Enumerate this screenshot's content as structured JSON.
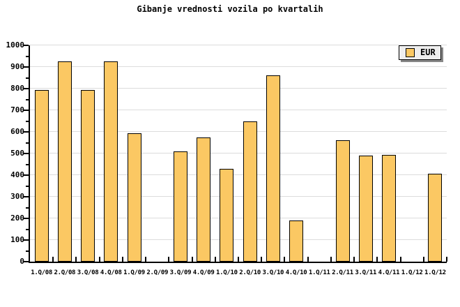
{
  "title": "Gibanje vrednosti vozila po kvartalih",
  "legend": {
    "label": "EUR"
  },
  "chart_data": {
    "type": "bar",
    "title": "Gibanje vrednosti vozila po kvartalih",
    "categories": [
      "1.Q/08",
      "2.Q/08",
      "3.Q/08",
      "4.Q/08",
      "1.Q/09",
      "2.Q/09",
      "3.Q/09",
      "4.Q/09",
      "1.Q/10",
      "2.Q/10",
      "3.Q/10",
      "4.Q/10",
      "1.Q/11",
      "2.Q/11",
      "3.Q/11",
      "4.Q/11",
      "1.Q/12",
      "1.Q/12"
    ],
    "series": [
      {
        "name": "EUR",
        "values": [
          795,
          925,
          795,
          925,
          595,
          0,
          510,
          575,
          430,
          650,
          860,
          190,
          0,
          560,
          490,
          495,
          0,
          405
        ]
      }
    ],
    "ylim": [
      0,
      1000
    ],
    "y_major_step": 100,
    "y_minor_step": 50,
    "y_tick_labels": [
      "0",
      "100",
      "200",
      "300",
      "400",
      "500",
      "600",
      "700",
      "800",
      "900",
      "1000"
    ],
    "grid": true,
    "legend_position": "top-right",
    "colors": {
      "bar_fill": "#FBC863",
      "bar_border": "#000000",
      "gridline": "#DCDCDC",
      "axis": "#000000",
      "legend_bg": "#EEEEEE",
      "legend_shadow": "#888888",
      "background": "#FFFFFF",
      "text": "#000000"
    }
  }
}
